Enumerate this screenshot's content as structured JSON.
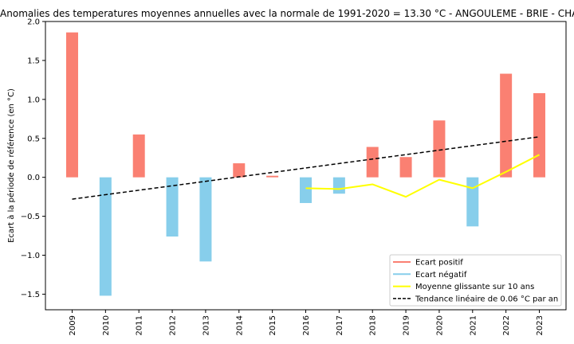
{
  "chart_data": {
    "type": "bar",
    "title": "Anomalies des temperatures moyennes annuelles avec la normale de 1991-2020 = 13.30 °C - ANGOULEME - BRIE - CHAMPNIERS",
    "xlabel": "",
    "ylabel": "Ecart à la période de référence (en °C)",
    "ylim": [
      -1.7,
      2.0
    ],
    "yticks": [
      2.0,
      1.5,
      1.0,
      0.5,
      0.0,
      -0.5,
      -1.0,
      -1.5
    ],
    "ytick_labels": [
      "2.0",
      "1.5",
      "1.0",
      "0.5",
      "0.0",
      "−0.5",
      "−1.0",
      "−1.5"
    ],
    "grid": false,
    "legend_position": "lower-right",
    "categories": [
      "2009",
      "2010",
      "2011",
      "2012",
      "2013",
      "2014",
      "2015",
      "2016",
      "2017",
      "2018",
      "2019",
      "2020",
      "2021",
      "2022",
      "2023"
    ],
    "values": [
      1.86,
      -1.52,
      0.55,
      -0.76,
      -1.08,
      0.18,
      0.02,
      -0.33,
      -0.21,
      0.39,
      0.26,
      0.73,
      -0.63,
      1.33,
      1.08
    ],
    "colors": {
      "positive": "#fa8072",
      "negative": "#87ceeb",
      "rolling": "#ffff00",
      "trend": "#000000"
    },
    "series": [
      {
        "name": "Ecart positif",
        "style": "bar-positive"
      },
      {
        "name": "Ecart négatif",
        "style": "bar-negative"
      },
      {
        "name": "Moyenne glissante sur 10 ans",
        "x": [
          "2016",
          "2017",
          "2018",
          "2019",
          "2020",
          "2021",
          "2022",
          "2023"
        ],
        "values": [
          -0.14,
          -0.15,
          -0.09,
          -0.25,
          -0.03,
          -0.14,
          0.07,
          0.29
        ]
      },
      {
        "name": "Tendance linéaire de 0.06 °C par an",
        "x": [
          "2009",
          "2023"
        ],
        "values": [
          -0.28,
          0.52
        ]
      }
    ]
  }
}
